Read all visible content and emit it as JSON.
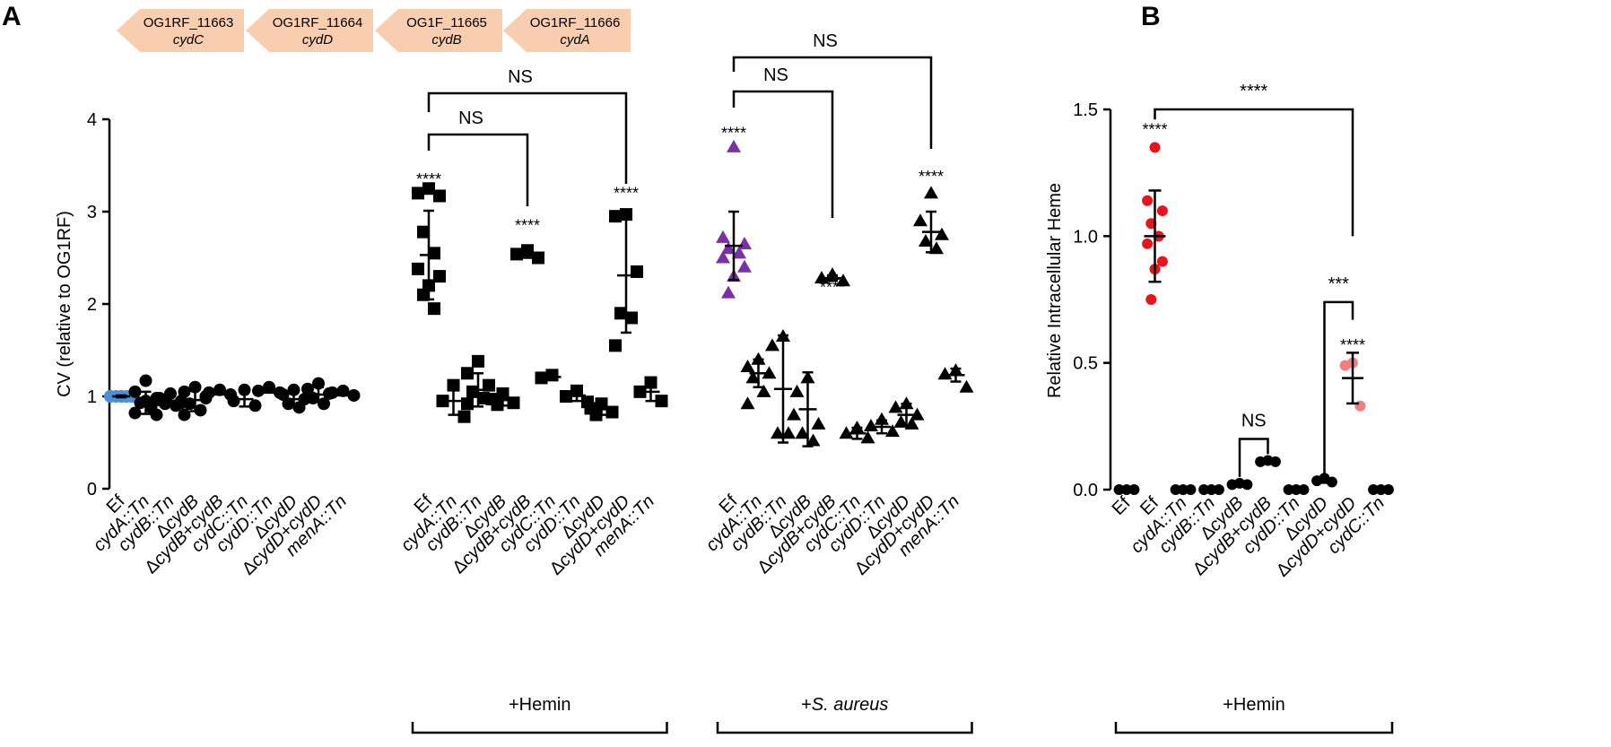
{
  "panel_labels": [
    "A",
    "B"
  ],
  "gene_arrows": [
    {
      "locus": "OG1RF_11663",
      "gene": "cydC"
    },
    {
      "locus": "OG1RF_11664",
      "gene": "cydD"
    },
    {
      "locus": "OG1F_11665",
      "gene": "cydB"
    },
    {
      "locus": "OG1RF_11666",
      "gene": "cydA"
    }
  ],
  "colors": {
    "ink": "#000000",
    "ef_blue": "#4a90d9",
    "purple": "#7b2fa8",
    "red": "#e8141b",
    "pink": "#f08080",
    "arrow_fill": "#f9cdb0"
  },
  "chart_data": [
    {
      "type": "scatter",
      "title": "",
      "ylabel": "CV (relative to OG1RF)",
      "ylim": [
        0,
        4
      ],
      "yticks": [
        "0",
        "1",
        "2",
        "3",
        "4"
      ],
      "groups": [
        {
          "label": "",
          "categories": [
            "Ef",
            "cydA::Tn",
            "cydB::Tn",
            "ΔcydB",
            "ΔcydB+cydB",
            "cydC::Tn",
            "cydD::Tn",
            "ΔcydD",
            "ΔcydD+cydD",
            "menA::Tn"
          ]
        },
        {
          "label": "+Hemin",
          "categories": [
            "Ef",
            "cydA::Tn",
            "cydB::Tn",
            "ΔcydB",
            "ΔcydB+cydB",
            "cydC::Tn",
            "cydD::Tn",
            "ΔcydD",
            "ΔcydD+cydD",
            "menA::Tn"
          ]
        },
        {
          "label": "+S. aureus",
          "categories": [
            "Ef",
            "cydA::Tn",
            "cydB::Tn",
            "ΔcydB",
            "ΔcydB+cydB",
            "cydC::Tn",
            "cydD::Tn",
            "ΔcydD",
            "ΔcydD+cydD",
            "menA::Tn"
          ]
        }
      ],
      "series": [
        {
          "group": 0,
          "marker": "circle",
          "points": [
            {
              "x": 0,
              "mean": 1.0,
              "sd": 0.01,
              "values": [
                1.0,
                1.0,
                1.0,
                1.0,
                1.0,
                1.0,
                1.0,
                1.0
              ],
              "color": "#4a90d9"
            },
            {
              "x": 1,
              "mean": 0.93,
              "sd": 0.12,
              "values": [
                1.17,
                1.05,
                0.98,
                0.93,
                0.88,
                0.82,
                0.8,
                0.95
              ]
            },
            {
              "x": 2,
              "mean": 0.95,
              "sd": 0.05,
              "values": [
                1.03,
                0.98,
                0.95,
                0.92,
                0.9,
                0.96,
                0.93
              ]
            },
            {
              "x": 3,
              "mean": 0.96,
              "sd": 0.12,
              "values": [
                1.1,
                1.05,
                0.98,
                0.92,
                0.85,
                0.8,
                1.0
              ]
            },
            {
              "x": 4,
              "mean": 1.04,
              "sd": 0.02,
              "values": [
                1.07,
                1.04,
                1.02
              ]
            },
            {
              "x": 5,
              "mean": 0.97,
              "sd": 0.08,
              "values": [
                1.07,
                0.95,
                0.9
              ]
            },
            {
              "x": 6,
              "mean": 1.07,
              "sd": 0.03,
              "values": [
                1.1,
                1.06,
                1.04
              ]
            },
            {
              "x": 7,
              "mean": 0.97,
              "sd": 0.07,
              "values": [
                1.07,
                1.02,
                0.97,
                0.92,
                0.88
              ]
            },
            {
              "x": 8,
              "mean": 1.02,
              "sd": 0.08,
              "values": [
                1.14,
                1.08,
                1.03,
                0.98,
                0.92
              ]
            },
            {
              "x": 9,
              "mean": 1.03,
              "sd": 0.02,
              "values": [
                1.06,
                1.04,
                1.01
              ]
            }
          ]
        },
        {
          "group": 1,
          "marker": "square",
          "points": [
            {
              "x": 0,
              "mean": 2.53,
              "sd": 0.48,
              "values": [
                3.25,
                3.2,
                3.17,
                2.78,
                2.55,
                2.38,
                2.3,
                2.2,
                2.1,
                1.95
              ]
            },
            {
              "x": 1,
              "mean": 0.95,
              "sd": 0.15,
              "values": [
                1.12,
                0.95,
                0.78
              ]
            },
            {
              "x": 2,
              "mean": 1.07,
              "sd": 0.18,
              "values": [
                1.38,
                1.25,
                1.12,
                1.05,
                0.98,
                0.92
              ]
            },
            {
              "x": 3,
              "mean": 0.96,
              "sd": 0.06,
              "values": [
                1.03,
                0.97,
                0.93,
                0.91
              ]
            },
            {
              "x": 4,
              "mean": 2.54,
              "sd": 0.04,
              "values": [
                2.58,
                2.54,
                2.5
              ]
            },
            {
              "x": 5,
              "mean": 1.21,
              "sd": 0.02,
              "values": [
                1.23,
                1.2
              ]
            },
            {
              "x": 6,
              "mean": 1.01,
              "sd": 0.06,
              "values": [
                1.06,
                1.0,
                0.94
              ]
            },
            {
              "x": 7,
              "mean": 0.86,
              "sd": 0.06,
              "values": [
                0.92,
                0.87,
                0.83,
                0.8
              ]
            },
            {
              "x": 8,
              "mean": 2.31,
              "sd": 0.62,
              "values": [
                2.97,
                2.95,
                2.35,
                1.9,
                1.85,
                1.55
              ]
            },
            {
              "x": 9,
              "mean": 1.05,
              "sd": 0.1,
              "values": [
                1.15,
                1.05,
                0.95
              ]
            }
          ]
        },
        {
          "group": 2,
          "marker": "triangle",
          "points": [
            {
              "x": 0,
              "mean": 2.63,
              "sd": 0.37,
              "values": [
                3.7,
                2.72,
                2.65,
                2.6,
                2.55,
                2.5,
                2.4,
                2.3,
                2.12
              ],
              "color": "#7b2fa8"
            },
            {
              "x": 1,
              "mean": 1.25,
              "sd": 0.15,
              "values": [
                1.4,
                1.32,
                1.25,
                1.2,
                1.05,
                0.92
              ]
            },
            {
              "x": 2,
              "mean": 1.08,
              "sd": 0.58,
              "values": [
                1.65,
                1.55,
                0.8,
                0.6,
                0.6
              ]
            },
            {
              "x": 3,
              "mean": 0.86,
              "sd": 0.4,
              "values": [
                1.2,
                1.05,
                0.7,
                0.6,
                0.52
              ]
            },
            {
              "x": 4,
              "mean": 2.28,
              "sd": 0.03,
              "values": [
                2.32,
                2.28,
                2.25
              ]
            },
            {
              "x": 5,
              "mean": 0.6,
              "sd": 0.06,
              "values": [
                0.66,
                0.6,
                0.55
              ]
            },
            {
              "x": 6,
              "mean": 0.67,
              "sd": 0.07,
              "values": [
                0.75,
                0.68,
                0.62
              ]
            },
            {
              "x": 7,
              "mean": 0.8,
              "sd": 0.12,
              "values": [
                0.92,
                0.88,
                0.8,
                0.72,
                0.7
              ]
            },
            {
              "x": 8,
              "mean": 2.78,
              "sd": 0.22,
              "values": [
                3.2,
                2.9,
                2.75,
                2.68,
                2.6
              ]
            },
            {
              "x": 9,
              "mean": 1.23,
              "sd": 0.07,
              "values": [
                1.28,
                1.24,
                1.1
              ]
            }
          ]
        }
      ],
      "annotations": [
        {
          "text": "****",
          "group": 1,
          "x": 0,
          "y": 3.35
        },
        {
          "text": "****",
          "group": 1,
          "x": 4,
          "y": 2.85
        },
        {
          "text": "****",
          "group": 1,
          "x": 8,
          "y": 3.2
        },
        {
          "text": "****",
          "group": 2,
          "x": 0,
          "y": 3.85
        },
        {
          "text": "****",
          "group": 2,
          "x": 4,
          "y": 2.18
        },
        {
          "text": "****",
          "group": 2,
          "x": 8,
          "y": 3.38
        }
      ],
      "brackets": [
        {
          "group": 1,
          "from": 0,
          "to": 4,
          "text": "NS",
          "level": 1
        },
        {
          "group": 1,
          "from": 0,
          "to": 8,
          "text": "NS",
          "level": 2
        },
        {
          "group": 2,
          "from": 0,
          "to": 4,
          "text": "NS",
          "level": 1
        },
        {
          "group": 2,
          "from": 0,
          "to": 8,
          "text": "NS",
          "level": 2
        }
      ]
    },
    {
      "type": "scatter",
      "title": "",
      "ylabel": "Relative Intracellular Heme",
      "ylim": [
        0,
        1.5
      ],
      "yticks": [
        "0.0",
        "0.5",
        "1.0",
        "1.5"
      ],
      "categories": [
        "Ef",
        "Ef",
        "cydA::Tn",
        "cydB::Tn",
        "ΔcydB",
        "ΔcydB+cydB",
        "cydD::Tn",
        "ΔcydD",
        "ΔcydD+cydD",
        "cydC::Tn"
      ],
      "group_label": "+Hemin",
      "points": [
        {
          "x": 0,
          "mean": 0.0,
          "sd": 0.0,
          "values": [
            0.0,
            0.0,
            0.0
          ]
        },
        {
          "x": 1,
          "mean": 1.0,
          "sd": 0.18,
          "values": [
            1.35,
            1.14,
            1.1,
            1.05,
            1.0,
            0.97,
            0.9,
            0.87,
            0.75
          ],
          "color": "#e8141b"
        },
        {
          "x": 2,
          "mean": 0.0,
          "sd": 0.0,
          "values": [
            0.0,
            0.0,
            0.0
          ]
        },
        {
          "x": 3,
          "mean": 0.0,
          "sd": 0.0,
          "values": [
            0.0,
            0.0,
            0.0
          ]
        },
        {
          "x": 4,
          "mean": 0.02,
          "sd": 0.004,
          "values": [
            0.025,
            0.02,
            0.02
          ]
        },
        {
          "x": 5,
          "mean": 0.11,
          "sd": 0.005,
          "values": [
            0.115,
            0.11,
            0.11
          ]
        },
        {
          "x": 6,
          "mean": 0.0,
          "sd": 0.0,
          "values": [
            0.0,
            0.0,
            0.0
          ]
        },
        {
          "x": 7,
          "mean": 0.035,
          "sd": 0.008,
          "values": [
            0.045,
            0.035,
            0.03
          ]
        },
        {
          "x": 8,
          "mean": 0.44,
          "sd": 0.1,
          "values": [
            0.5,
            0.49,
            0.33
          ],
          "color": "#f08080"
        },
        {
          "x": 9,
          "mean": 0.0,
          "sd": 0.0,
          "values": [
            0.0,
            0.0,
            0.0
          ]
        }
      ],
      "annotations": [
        {
          "text": "****",
          "x": 1,
          "y": 1.42
        },
        {
          "text": "****",
          "x": 8,
          "y": 0.57
        }
      ],
      "brackets": [
        {
          "from": 1,
          "to": 8,
          "text": "****",
          "top": 1.5,
          "right_bottom": 1.0,
          "left_bottom": 1.46
        },
        {
          "from": 7,
          "to": 8,
          "text": "***",
          "top": 0.74,
          "right_bottom": 0.67,
          "left_bottom": 0.06
        },
        {
          "from": 4,
          "to": 5,
          "text": "NS",
          "top": 0.2,
          "right_bottom": 0.14,
          "left_bottom": 0.05
        }
      ]
    }
  ]
}
